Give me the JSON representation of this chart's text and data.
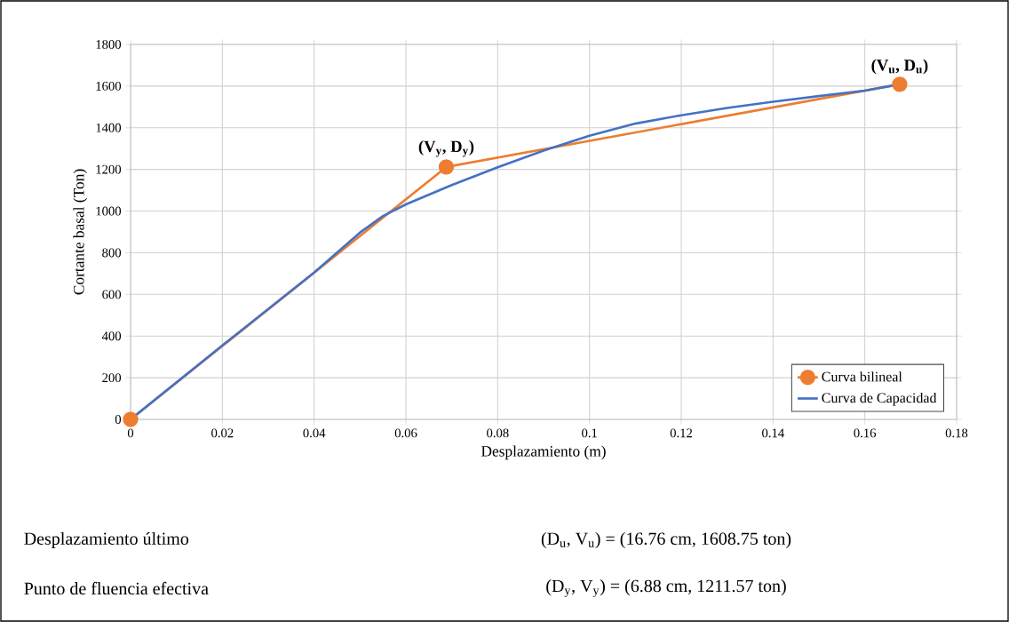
{
  "chart_data": {
    "type": "line",
    "xlabel": "Desplazamiento  (m)",
    "ylabel": "Cortante basal (Ton)",
    "xlim": [
      0,
      0.18
    ],
    "xticks": [
      0,
      0.02,
      0.04,
      0.06,
      0.08,
      0.1,
      0.12,
      0.14,
      0.16,
      0.18
    ],
    "ylim": [
      0,
      1800
    ],
    "yticks": [
      0,
      200,
      400,
      600,
      800,
      1000,
      1200,
      1400,
      1600,
      1800
    ],
    "grid": true,
    "legend": "bottom right",
    "series": [
      {
        "name": "Curva bilineal",
        "color": "#ed7d31",
        "marker": "circle",
        "x": [
          0,
          0.0688,
          0.1676
        ],
        "values": [
          0,
          1211.57,
          1608.75
        ]
      },
      {
        "name": "Curva de Capacidad",
        "color": "#4472c4",
        "marker": "none",
        "x": [
          0,
          0.02,
          0.04,
          0.05,
          0.055,
          0.06,
          0.07,
          0.08,
          0.09,
          0.1,
          0.11,
          0.12,
          0.13,
          0.14,
          0.15,
          0.16,
          0.1676
        ],
        "values": [
          0,
          355,
          705,
          897,
          976,
          1032,
          1125,
          1210,
          1290,
          1362,
          1420,
          1460,
          1495,
          1525,
          1552,
          1578,
          1608.75
        ]
      }
    ],
    "annotations": [
      {
        "text": "(V$_{y}$, D$_{y}$)",
        "x": 0.0688,
        "y": 1211.57
      },
      {
        "text": "(V$_{u}$, D$_{u}$)",
        "x": 0.1676,
        "y": 1608.75
      },
      "Desplazamiento último",
      "(D$_{u}$, V$_{u}$) = (16.76 cm, 1608.75 ton)",
      "Punto de fluencia efectiva",
      "(D$_{y}$, V$_{y}$) = (6.88 cm, 1211.57 ton)"
    ]
  }
}
